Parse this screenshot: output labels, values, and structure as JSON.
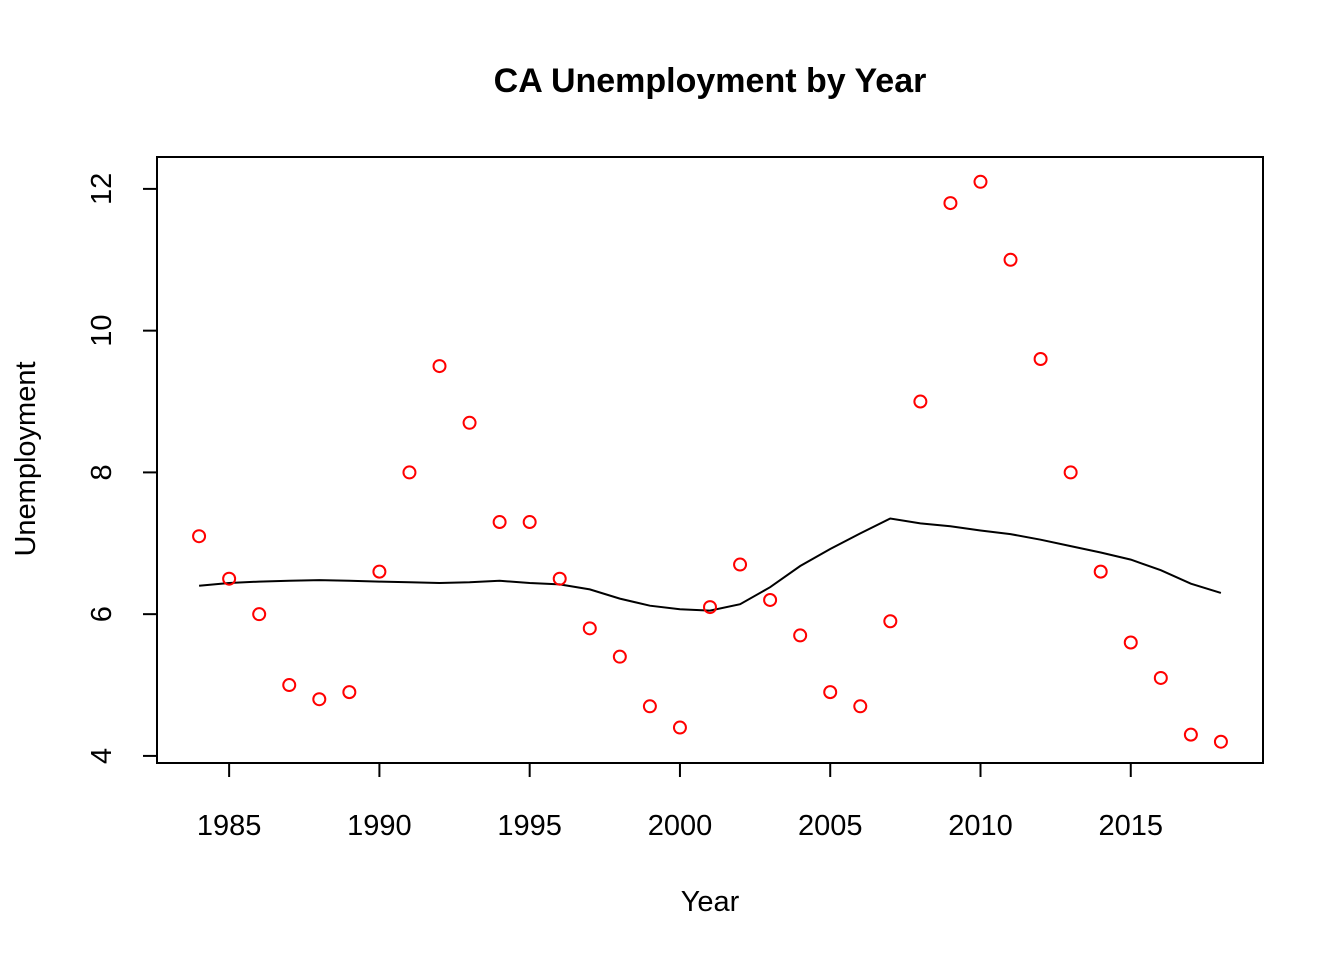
{
  "chart_data": {
    "type": "scatter",
    "title": "CA Unemployment by Year",
    "xlabel": "Year",
    "ylabel": "Unemployment",
    "xlim": [
      1982.6,
      2019.4
    ],
    "ylim": [
      3.9,
      12.45
    ],
    "xticks": [
      1985,
      1990,
      1995,
      2000,
      2005,
      2010,
      2015
    ],
    "yticks": [
      4,
      6,
      8,
      10,
      12
    ],
    "grid": false,
    "legend": "none",
    "colors": {
      "points": "#ff0000",
      "smooth_line": "#000000",
      "axes": "#000000",
      "background": "#ffffff"
    },
    "series": [
      {
        "marker": "open-circle",
        "x": [
          1984,
          1985,
          1986,
          1987,
          1988,
          1989,
          1990,
          1991,
          1992,
          1993,
          1994,
          1995,
          1996,
          1997,
          1998,
          1999,
          2000,
          2001,
          2002,
          2003,
          2004,
          2005,
          2006,
          2007,
          2008,
          2009,
          2010,
          2011,
          2012,
          2013,
          2014,
          2015,
          2016,
          2017,
          2018
        ],
        "y": [
          7.1,
          6.5,
          6.0,
          5.0,
          4.8,
          4.9,
          6.6,
          8.0,
          9.5,
          8.7,
          7.3,
          7.3,
          6.5,
          5.8,
          5.4,
          4.7,
          4.4,
          6.1,
          6.7,
          6.2,
          5.7,
          4.9,
          4.7,
          5.9,
          9.0,
          11.8,
          12.1,
          11.0,
          9.6,
          8.0,
          6.6,
          5.6,
          5.1,
          4.3,
          4.2
        ]
      },
      {
        "marker": "smooth-line",
        "x": [
          1984,
          1985,
          1986,
          1987,
          1988,
          1989,
          1990,
          1991,
          1992,
          1993,
          1994,
          1995,
          1996,
          1997,
          1998,
          1999,
          2000,
          2001,
          2002,
          2003,
          2004,
          2005,
          2006,
          2007,
          2008,
          2009,
          2010,
          2011,
          2012,
          2013,
          2014,
          2015,
          2016,
          2017,
          2018
        ],
        "y": [
          6.4,
          6.44,
          6.46,
          6.47,
          6.48,
          6.47,
          6.46,
          6.45,
          6.44,
          6.45,
          6.47,
          6.44,
          6.42,
          6.35,
          6.22,
          6.12,
          6.07,
          6.05,
          6.14,
          6.38,
          6.68,
          6.92,
          7.14,
          7.35,
          7.28,
          7.24,
          7.18,
          7.13,
          7.05,
          6.96,
          6.87,
          6.77,
          6.62,
          6.43,
          6.3
        ]
      }
    ]
  }
}
